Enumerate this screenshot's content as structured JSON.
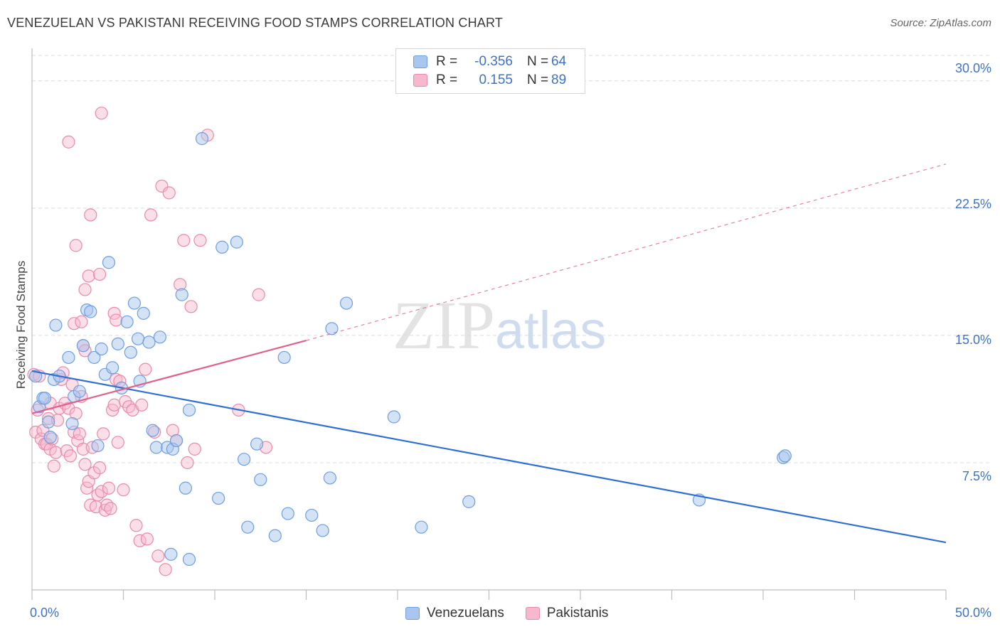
{
  "title": "VENEZUELAN VS PAKISTANI RECEIVING FOOD STAMPS CORRELATION CHART",
  "source": "Source: ZipAtlas.com",
  "watermark": {
    "zip": "ZIP",
    "atlas": "atlas"
  },
  "legend": {
    "rows": [
      {
        "r_label": "R =",
        "r_value": "-0.356",
        "n_label": "N =",
        "n_value": "64"
      },
      {
        "r_label": "R =",
        "r_value": "0.155",
        "n_label": "N =",
        "n_value": "89"
      }
    ]
  },
  "bottom_legend": [
    "Venezuelans",
    "Pakistanis"
  ],
  "colors": {
    "venezuelan_fill": "#a9c6ee",
    "venezuelan_stroke": "#6d9fe0",
    "venezuelan_line": "#2f6fd1",
    "pakistani_fill": "#f7b8cb",
    "pakistani_stroke": "#ea8aa8",
    "pakistani_line": "#e0618d",
    "tick_label": "#3d72c4",
    "grid": "#dcdcdc"
  },
  "chart_data": {
    "type": "scatter",
    "title": "VENEZUELAN VS PAKISTANI RECEIVING FOOD STAMPS CORRELATION CHART",
    "xlabel": "",
    "ylabel": "Receiving Food Stamps",
    "xlim": [
      0,
      50
    ],
    "ylim": [
      0,
      31.5
    ],
    "x_tick_labels": [
      "0.0%",
      "50.0%"
    ],
    "y_ticks": [
      7.5,
      15.0,
      22.5,
      30.0
    ],
    "y_tick_labels": [
      "7.5%",
      "15.0%",
      "22.5%",
      "30.0%"
    ],
    "grid": "horizontal dashed",
    "legend_position": "top-center",
    "series": [
      {
        "name": "Venezuelans",
        "r": -0.356,
        "n": 64,
        "trend": {
          "x": [
            0,
            50
          ],
          "y": [
            12.9,
            2.8
          ],
          "style": "solid"
        },
        "points": [
          [
            0.2,
            12.6
          ],
          [
            0.4,
            10.8
          ],
          [
            0.6,
            11.3
          ],
          [
            0.7,
            11.3
          ],
          [
            0.9,
            9.9
          ],
          [
            1.0,
            9.0
          ],
          [
            1.2,
            12.4
          ],
          [
            1.3,
            15.6
          ],
          [
            1.5,
            12.6
          ],
          [
            2.0,
            13.7
          ],
          [
            2.2,
            9.8
          ],
          [
            2.3,
            11.4
          ],
          [
            2.6,
            11.7
          ],
          [
            2.8,
            14.4
          ],
          [
            3.0,
            16.5
          ],
          [
            3.2,
            16.4
          ],
          [
            3.4,
            13.7
          ],
          [
            3.6,
            8.5
          ],
          [
            3.8,
            14.2
          ],
          [
            4.0,
            12.7
          ],
          [
            4.2,
            19.3
          ],
          [
            4.4,
            13.1
          ],
          [
            4.7,
            14.5
          ],
          [
            4.9,
            11.9
          ],
          [
            5.2,
            15.8
          ],
          [
            5.4,
            14.0
          ],
          [
            5.6,
            16.9
          ],
          [
            5.8,
            14.8
          ],
          [
            5.9,
            12.3
          ],
          [
            6.1,
            16.3
          ],
          [
            6.4,
            14.6
          ],
          [
            6.6,
            9.4
          ],
          [
            6.8,
            8.4
          ],
          [
            7.0,
            14.9
          ],
          [
            7.4,
            8.4
          ],
          [
            7.6,
            2.1
          ],
          [
            7.7,
            8.3
          ],
          [
            7.9,
            8.8
          ],
          [
            8.2,
            17.4
          ],
          [
            8.4,
            6.0
          ],
          [
            8.6,
            10.6
          ],
          [
            8.6,
            1.8
          ],
          [
            9.3,
            26.6
          ],
          [
            10.2,
            5.4
          ],
          [
            10.4,
            20.2
          ],
          [
            11.2,
            20.5
          ],
          [
            11.6,
            7.7
          ],
          [
            11.8,
            3.7
          ],
          [
            12.3,
            8.6
          ],
          [
            12.5,
            6.5
          ],
          [
            13.3,
            3.2
          ],
          [
            13.8,
            13.7
          ],
          [
            14.0,
            4.5
          ],
          [
            15.3,
            4.4
          ],
          [
            15.9,
            3.5
          ],
          [
            16.3,
            6.6
          ],
          [
            16.4,
            15.4
          ],
          [
            17.2,
            16.9
          ],
          [
            19.8,
            10.2
          ],
          [
            21.3,
            3.7
          ],
          [
            23.9,
            5.2
          ],
          [
            36.5,
            5.3
          ],
          [
            41.1,
            7.8
          ],
          [
            41.2,
            7.9
          ]
        ]
      },
      {
        "name": "Pakistanis",
        "r": 0.155,
        "n": 89,
        "trend": {
          "x": [
            0,
            15
          ],
          "y": [
            10.4,
            14.7
          ],
          "style": "solid",
          "extension_x": [
            15,
            50
          ],
          "extension_y": [
            14.7,
            25.1
          ],
          "extension_style": "dashed"
        },
        "points": [
          [
            0.1,
            12.7
          ],
          [
            0.2,
            9.3
          ],
          [
            0.3,
            10.6
          ],
          [
            0.4,
            12.6
          ],
          [
            0.5,
            8.9
          ],
          [
            0.6,
            9.4
          ],
          [
            0.7,
            8.6
          ],
          [
            0.8,
            8.6
          ],
          [
            0.9,
            10.1
          ],
          [
            1.0,
            11.0
          ],
          [
            1.0,
            8.3
          ],
          [
            1.1,
            8.9
          ],
          [
            1.2,
            7.3
          ],
          [
            1.3,
            8.1
          ],
          [
            1.4,
            10.0
          ],
          [
            1.5,
            10.7
          ],
          [
            1.6,
            12.4
          ],
          [
            1.7,
            12.8
          ],
          [
            1.8,
            11.0
          ],
          [
            1.9,
            8.2
          ],
          [
            2.0,
            10.7
          ],
          [
            2.1,
            7.9
          ],
          [
            2.2,
            12.1
          ],
          [
            2.3,
            9.3
          ],
          [
            2.4,
            10.4
          ],
          [
            2.5,
            8.8
          ],
          [
            2.6,
            9.2
          ],
          [
            2.7,
            11.4
          ],
          [
            2.8,
            8.3
          ],
          [
            2.9,
            7.4
          ],
          [
            3.0,
            6.0
          ],
          [
            3.1,
            6.4
          ],
          [
            3.2,
            5.0
          ],
          [
            3.3,
            8.4
          ],
          [
            3.4,
            6.9
          ],
          [
            3.5,
            4.9
          ],
          [
            3.6,
            5.6
          ],
          [
            3.7,
            7.2
          ],
          [
            3.8,
            5.8
          ],
          [
            3.9,
            9.2
          ],
          [
            4.0,
            4.7
          ],
          [
            4.1,
            5.0
          ],
          [
            4.2,
            6.0
          ],
          [
            4.3,
            4.8
          ],
          [
            4.4,
            10.6
          ],
          [
            4.5,
            10.9
          ],
          [
            4.6,
            12.4
          ],
          [
            4.7,
            8.7
          ],
          [
            4.8,
            12.3
          ],
          [
            5.0,
            5.9
          ],
          [
            5.1,
            11.1
          ],
          [
            5.3,
            10.8
          ],
          [
            5.5,
            10.6
          ],
          [
            5.7,
            3.8
          ],
          [
            5.9,
            2.9
          ],
          [
            6.0,
            10.9
          ],
          [
            6.2,
            13.0
          ],
          [
            6.3,
            3.0
          ],
          [
            6.5,
            22.1
          ],
          [
            6.7,
            9.3
          ],
          [
            6.9,
            2.0
          ],
          [
            7.1,
            23.8
          ],
          [
            7.3,
            1.2
          ],
          [
            7.5,
            23.4
          ],
          [
            7.7,
            9.4
          ],
          [
            7.9,
            8.8
          ],
          [
            8.1,
            18.0
          ],
          [
            8.3,
            20.6
          ],
          [
            8.5,
            7.5
          ],
          [
            8.7,
            16.7
          ],
          [
            8.9,
            8.3
          ],
          [
            9.2,
            20.6
          ],
          [
            9.6,
            26.8
          ],
          [
            11.3,
            10.6
          ],
          [
            12.4,
            17.4
          ],
          [
            12.8,
            8.4
          ],
          [
            2.0,
            26.4
          ],
          [
            3.8,
            28.1
          ],
          [
            3.2,
            22.1
          ],
          [
            2.4,
            20.3
          ],
          [
            3.1,
            18.5
          ],
          [
            3.7,
            18.6
          ],
          [
            2.9,
            17.7
          ],
          [
            2.3,
            15.7
          ],
          [
            2.7,
            15.8
          ],
          [
            4.5,
            16.3
          ],
          [
            4.6,
            15.9
          ],
          [
            2.8,
            14.4
          ],
          [
            2.9,
            14.1
          ]
        ]
      }
    ]
  }
}
